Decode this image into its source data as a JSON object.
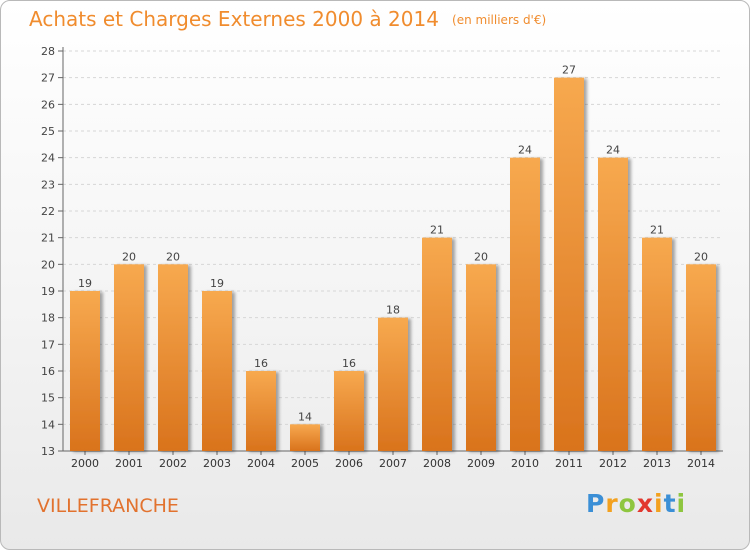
{
  "title": "Achats et Charges Externes 2000 à 2014",
  "subtitle": "(en milliers d'€)",
  "place": "VILLEFRANCHE",
  "logo": {
    "letters": [
      "P",
      "r",
      "o",
      "x",
      "i",
      "t",
      "i"
    ]
  },
  "colors": {
    "title": "#f08c2e",
    "bar_top": "#f7a94f",
    "bar_bottom": "#d9731c",
    "place": "#e2722e"
  },
  "chart_data": {
    "type": "bar",
    "categories": [
      "2000",
      "2001",
      "2002",
      "2003",
      "2004",
      "2005",
      "2006",
      "2007",
      "2008",
      "2009",
      "2010",
      "2011",
      "2012",
      "2013",
      "2014"
    ],
    "values": [
      19,
      20,
      20,
      19,
      16,
      14,
      16,
      18,
      21,
      20,
      24,
      27,
      24,
      21,
      20
    ],
    "ylim": [
      13,
      28
    ],
    "yticks": [
      13,
      14,
      15,
      16,
      17,
      18,
      19,
      20,
      21,
      22,
      23,
      24,
      25,
      26,
      27,
      28
    ],
    "grid": true,
    "data_labels": true
  }
}
